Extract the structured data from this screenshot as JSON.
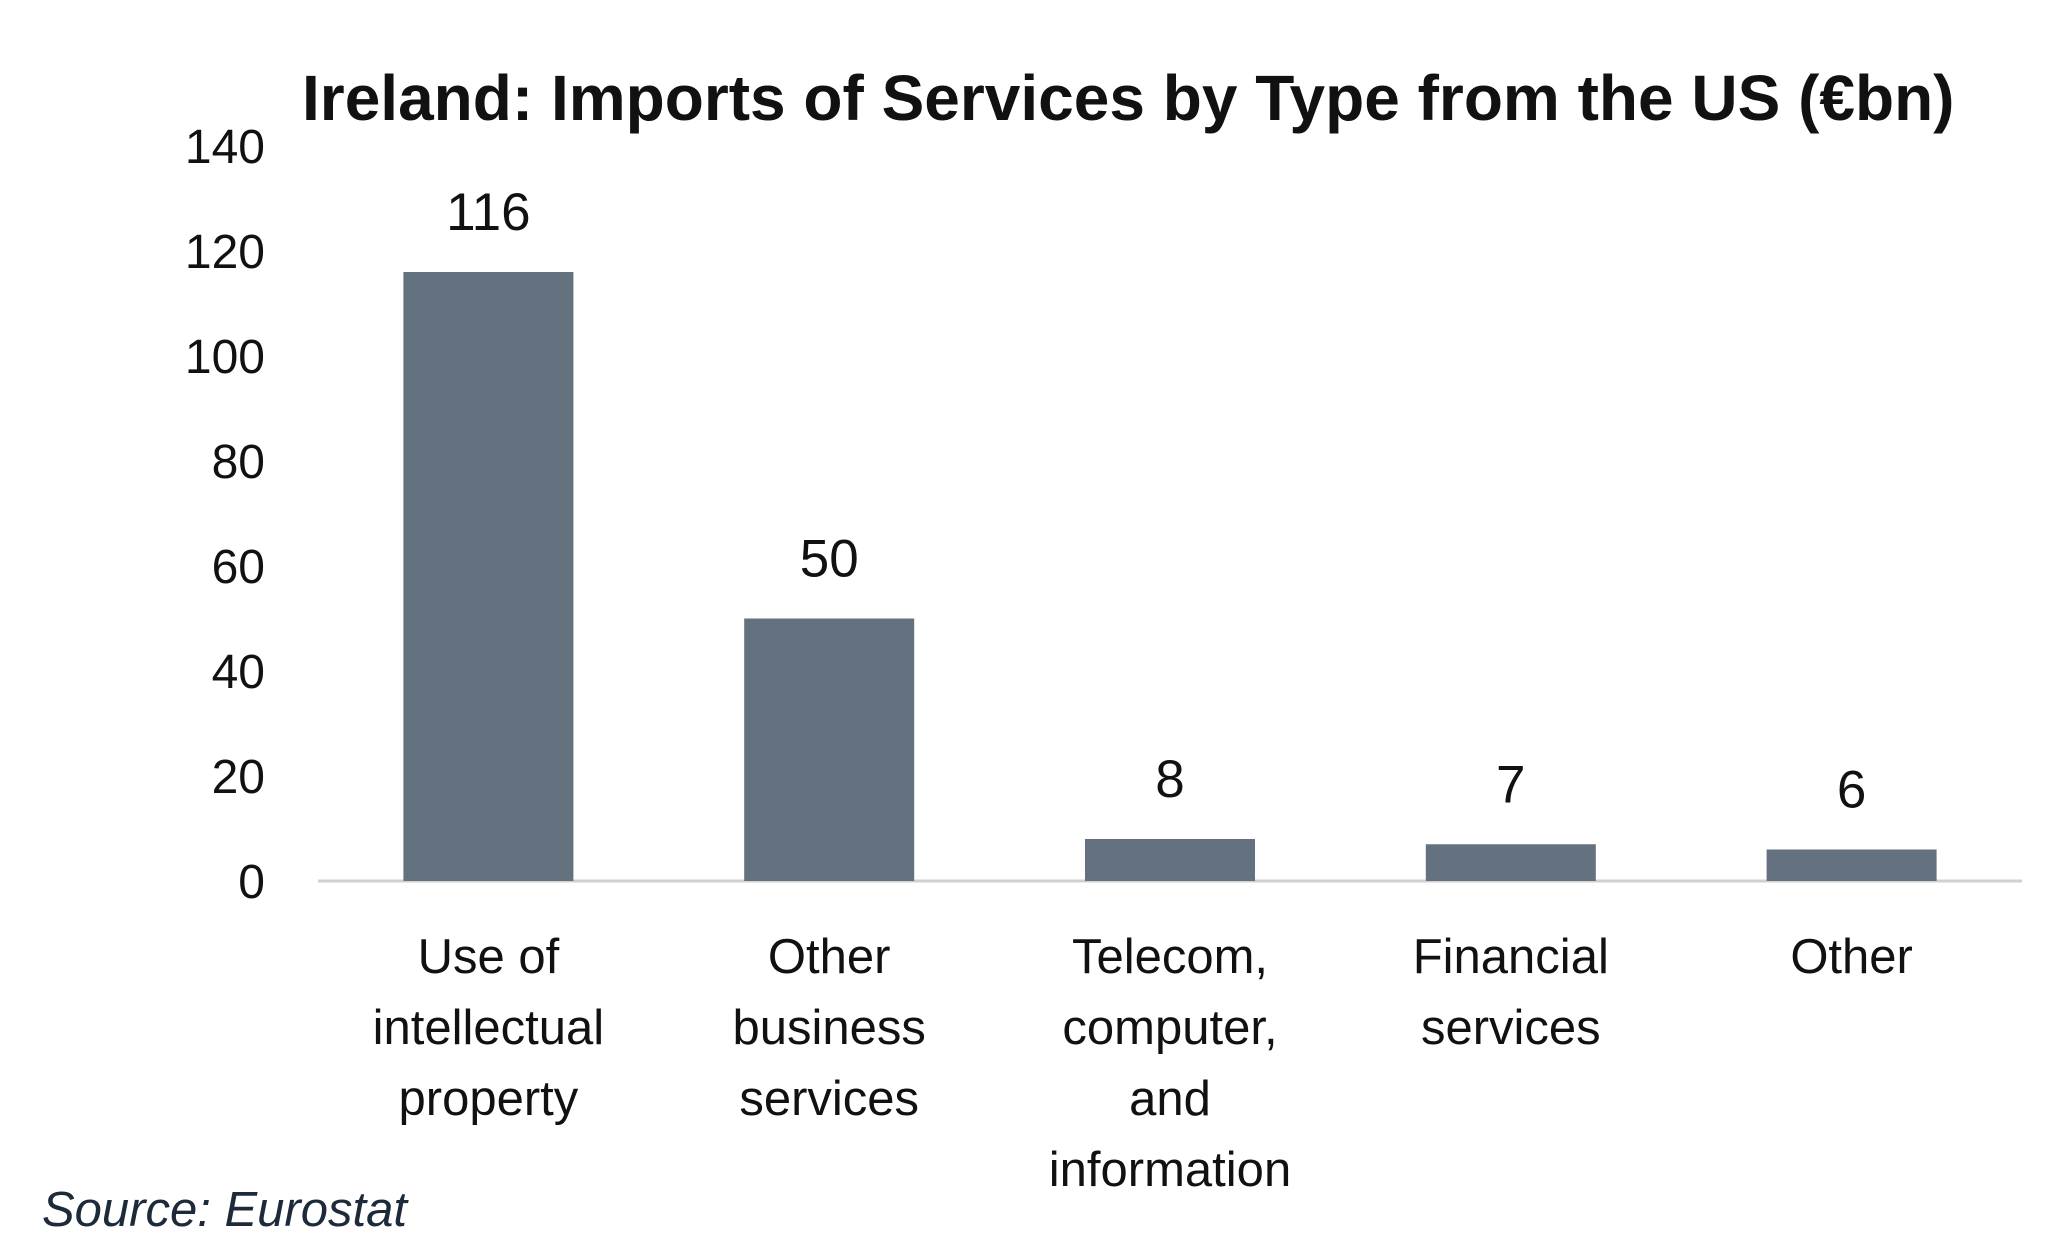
{
  "chart_data": {
    "type": "bar",
    "title": "Ireland: Imports of Services by Type from the US (€bn)",
    "categories": [
      [
        "Use of",
        "intellectual",
        "property"
      ],
      [
        "Other",
        "business",
        "services"
      ],
      [
        "Telecom,",
        "computer,",
        "and",
        "information"
      ],
      [
        "Financial",
        "services"
      ],
      [
        "Other"
      ]
    ],
    "values": [
      116,
      50,
      8,
      7,
      6
    ],
    "data_labels": [
      "116",
      "50",
      "8",
      "7",
      "6"
    ],
    "yticks": [
      "0",
      "20",
      "40",
      "60",
      "80",
      "100",
      "120",
      "140"
    ],
    "ylim": [
      0,
      140
    ],
    "xlabel": "",
    "ylabel": "",
    "grid": false,
    "legend": "none",
    "bar_color": "#64717e",
    "axis_color": "#d0d0d0"
  },
  "source": "Source: Eurostat"
}
